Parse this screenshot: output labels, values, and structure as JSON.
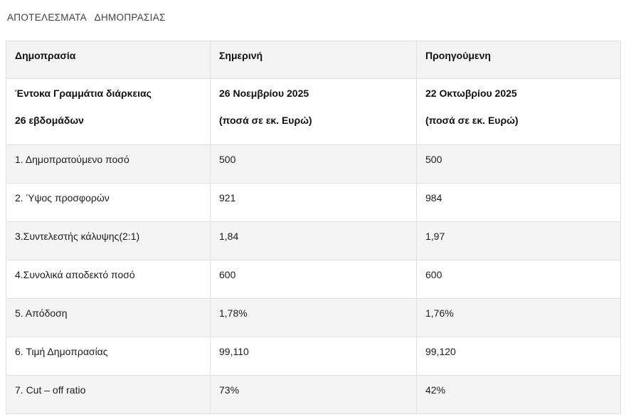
{
  "page": {
    "title": "ΑΠΟΤΕΛΕΣΜΑΤΑ   ΔΗΜΟΠΡΑΣΙΑΣ"
  },
  "colors": {
    "header_bg": "#f3f3f3",
    "stripe_bg": "#f4f4f4",
    "border": "#e1e1e1",
    "title_text": "#3f3f3f",
    "cell_text": "#1c1c1c"
  },
  "table": {
    "headers": [
      "Δημοπρασία",
      "Σημερινή",
      "Προηγούμενη"
    ],
    "subheader": {
      "security": {
        "line1": "Έντοκα Γραμμάτια διάρκειας",
        "line2": "26 εβδομάδων"
      },
      "current": {
        "line1": "26 Νοεμβρίου 2025",
        "line2": "(ποσά σε εκ. Ευρώ)"
      },
      "previous": {
        "line1": "22 Οκτωβρίου 2025",
        "line2": "(ποσά σε εκ. Ευρώ)"
      }
    },
    "rows": [
      {
        "label": "1. Δημοπρατούμενο ποσό",
        "current": "500",
        "previous": "500"
      },
      {
        "label": "2. Ύψος προσφορών",
        "current": "921",
        "previous": "984"
      },
      {
        "label": "3.Συντελεστής κάλυψης(2:1)",
        "current": "1,84",
        "previous": "1,97"
      },
      {
        "label": "4.Συνολικά αποδεκτό ποσό",
        "current": "600",
        "previous": "600"
      },
      {
        "label": "5. Απόδοση",
        "current": "1,78%",
        "previous": "1,76%"
      },
      {
        "label": "6. Τιμή Δημοπρασίας",
        "current": "99,110",
        "previous": "99,120"
      },
      {
        "label": "7. Cut – off ratio",
        "current": "73%",
        "previous": "42%"
      }
    ]
  }
}
